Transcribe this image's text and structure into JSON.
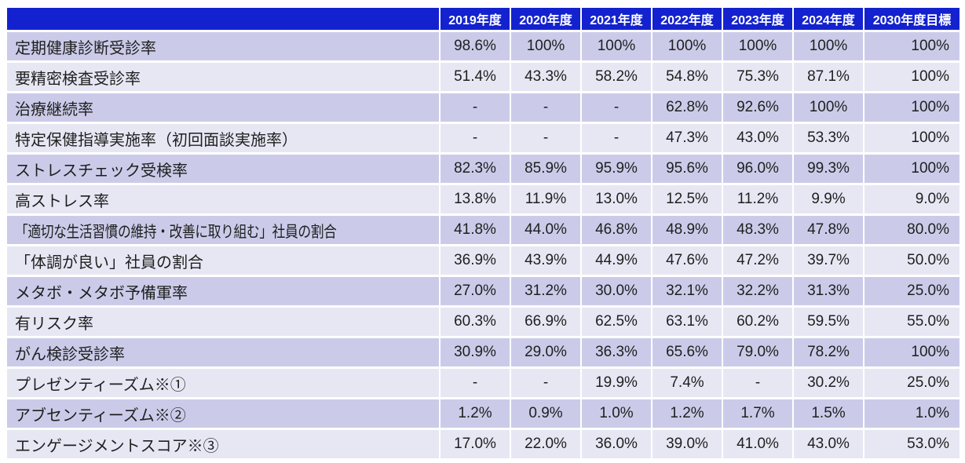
{
  "colors": {
    "header_bg": "#1322CE",
    "header_text": "#FFFFFF",
    "row_dark": "#CBCBE9",
    "row_light": "#E7E7F4",
    "text": "#1F1F1F"
  },
  "table": {
    "corner_label": "",
    "columns": [
      "2019年度",
      "2020年度",
      "2021年度",
      "2022年度",
      "2023年度",
      "2024年度",
      "2030年度目標"
    ],
    "rows": [
      {
        "label": "定期健康診断受診率",
        "values": [
          "98.6%",
          "100%",
          "100%",
          "100%",
          "100%",
          "100%",
          "100%"
        ]
      },
      {
        "label": "要精密検査受診率",
        "values": [
          "51.4%",
          "43.3%",
          "58.2%",
          "54.8%",
          "75.3%",
          "87.1%",
          "100%"
        ]
      },
      {
        "label": "治療継続率",
        "values": [
          "-",
          "-",
          "-",
          "62.8%",
          "92.6%",
          "100%",
          "100%"
        ]
      },
      {
        "label": "特定保健指導実施率（初回面談実施率）",
        "values": [
          "-",
          "-",
          "-",
          "47.3%",
          "43.0%",
          "53.3%",
          "100%"
        ]
      },
      {
        "label": "ストレスチェック受検率",
        "values": [
          "82.3%",
          "85.9%",
          "95.9%",
          "95.6%",
          "96.0%",
          "99.3%",
          "100%"
        ]
      },
      {
        "label": "高ストレス率",
        "values": [
          "13.8%",
          "11.9%",
          "13.0%",
          "12.5%",
          "11.2%",
          "9.9%",
          "9.0%"
        ]
      },
      {
        "label": "「適切な生活習慣の維持・改善に取り組む」社員の割合",
        "values": [
          "41.8%",
          "44.0%",
          "46.8%",
          "48.9%",
          "48.3%",
          "47.8%",
          "80.0%"
        ],
        "compressed": true
      },
      {
        "label": "「体調が良い」社員の割合",
        "values": [
          "36.9%",
          "43.9%",
          "44.9%",
          "47.6%",
          "47.2%",
          "39.7%",
          "50.0%"
        ]
      },
      {
        "label": "メタボ・メタボ予備軍率",
        "values": [
          "27.0%",
          "31.2%",
          "30.0%",
          "32.1%",
          "32.2%",
          "31.3%",
          "25.0%"
        ]
      },
      {
        "label": "有リスク率",
        "values": [
          "60.3%",
          "66.9%",
          "62.5%",
          "63.1%",
          "60.2%",
          "59.5%",
          "55.0%"
        ]
      },
      {
        "label": "がん検診受診率",
        "values": [
          "30.9%",
          "29.0%",
          "36.3%",
          "65.6%",
          "79.0%",
          "78.2%",
          "100%"
        ]
      },
      {
        "label": "プレゼンティーズム※①",
        "values": [
          "-",
          "-",
          "19.9%",
          "7.4%",
          "-",
          "30.2%",
          "25.0%"
        ]
      },
      {
        "label": "アブセンティーズム※②",
        "values": [
          "1.2%",
          "0.9%",
          "1.0%",
          "1.2%",
          "1.7%",
          "1.5%",
          "1.0%"
        ]
      },
      {
        "label": "エンゲージメントスコア※③",
        "values": [
          "17.0%",
          "22.0%",
          "36.0%",
          "39.0%",
          "41.0%",
          "43.0%",
          "53.0%"
        ]
      }
    ]
  }
}
